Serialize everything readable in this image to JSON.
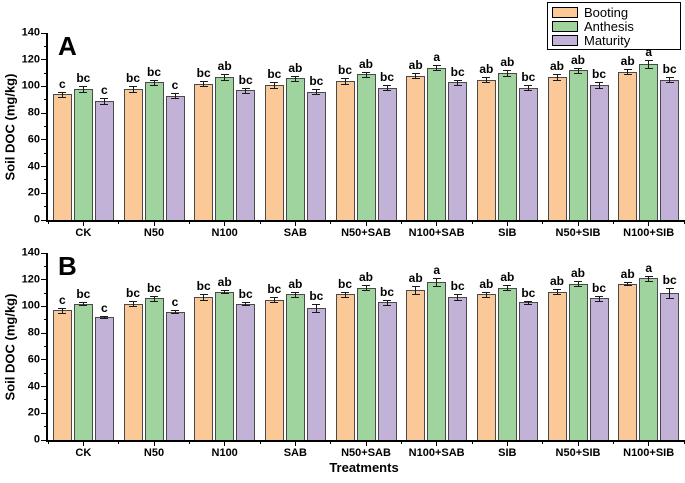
{
  "figure": {
    "background": "#ffffff",
    "xlabel": "Treatments"
  },
  "colors": {
    "booting": "#FBC998",
    "anthesis": "#A0D49E",
    "maturity": "#C2B2D8",
    "axis": "#000000",
    "bar_border": "#4a4a4a"
  },
  "legend": {
    "position": "top-right",
    "items": [
      "Booting",
      "Anthesis",
      "Maturity"
    ]
  },
  "chart_data": [
    {
      "type": "bar",
      "panel_label": "A",
      "ylabel": "Soil DOC (mg/kg)",
      "ylim": [
        0,
        140
      ],
      "yticks": [
        0,
        20,
        40,
        60,
        80,
        100,
        120,
        140
      ],
      "minor_tick_step": 10,
      "grid": false,
      "categories": [
        "CK",
        "N50",
        "N100",
        "SAB",
        "N50+SAB",
        "N100+SAB",
        "SIB",
        "N50+SIB",
        "N100+SIB"
      ],
      "series": [
        {
          "name": "Booting",
          "color": "#FBC998",
          "values": [
            94,
            98,
            102,
            101,
            104,
            108,
            105,
            107,
            111
          ],
          "errors": [
            2,
            2,
            2,
            2,
            2,
            2,
            2,
            2,
            2
          ],
          "letters": [
            "c",
            "bc",
            "bc",
            "bc",
            "bc",
            "ab",
            "ab",
            "ab",
            "ab"
          ]
        },
        {
          "name": "Anthesis",
          "color": "#A0D49E",
          "values": [
            98,
            103,
            107,
            106,
            109,
            114,
            110,
            112,
            117
          ],
          "errors": [
            2,
            2,
            2,
            2,
            2,
            2,
            2,
            2,
            3
          ],
          "letters": [
            "bc",
            "bc",
            "ab",
            "ab",
            "ab",
            "a",
            "ab",
            "ab",
            "a"
          ]
        },
        {
          "name": "Maturity",
          "color": "#C2B2D8",
          "values": [
            89,
            93,
            97,
            96,
            99,
            103,
            99,
            101,
            105
          ],
          "errors": [
            2,
            2,
            2,
            2,
            2,
            2,
            2,
            2,
            2
          ],
          "letters": [
            "c",
            "c",
            "bc",
            "bc",
            "bc",
            "bc",
            "bc",
            "bc",
            "bc"
          ]
        }
      ]
    },
    {
      "type": "bar",
      "panel_label": "B",
      "ylabel": "Soil DOC (mg/kg)",
      "xlabel": "Treatments",
      "ylim": [
        0,
        140
      ],
      "yticks": [
        0,
        20,
        40,
        60,
        80,
        100,
        120,
        140
      ],
      "minor_tick_step": 10,
      "grid": false,
      "categories": [
        "CK",
        "N50",
        "N100",
        "SAB",
        "N50+SAB",
        "N100+SAB",
        "SIB",
        "N50+SIB",
        "N100+SIB"
      ],
      "series": [
        {
          "name": "Booting",
          "color": "#FBC998",
          "values": [
            97,
            102,
            107,
            105,
            109,
            112,
            109,
            111,
            117
          ],
          "errors": [
            2,
            2,
            2,
            2,
            2,
            3,
            2,
            2,
            1
          ],
          "letters": [
            "c",
            "bc",
            "bc",
            "bc",
            "bc",
            "ab",
            "ab",
            "ab",
            "ab"
          ]
        },
        {
          "name": "Anthesis",
          "color": "#A0D49E",
          "values": [
            102,
            106,
            111,
            109,
            114,
            118,
            114,
            117,
            121
          ],
          "errors": [
            1,
            2,
            1,
            2,
            2,
            3,
            2,
            2,
            2
          ],
          "letters": [
            "bc",
            "bc",
            "ab",
            "ab",
            "ab",
            "a",
            "ab",
            "ab",
            "a"
          ]
        },
        {
          "name": "Maturity",
          "color": "#C2B2D8",
          "values": [
            92,
            96,
            102,
            99,
            103,
            107,
            103,
            106,
            110
          ],
          "errors": [
            1,
            1,
            1,
            3,
            2,
            2,
            1,
            2,
            4
          ],
          "letters": [
            "c",
            "c",
            "bc",
            "bc",
            "bc",
            "bc",
            "bc",
            "bc",
            "bc"
          ]
        }
      ]
    }
  ]
}
